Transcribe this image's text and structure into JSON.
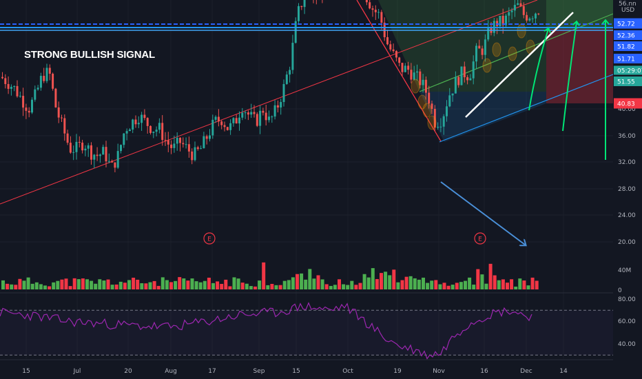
{
  "annotation": {
    "text": "STRONG BULLISH SIGNAL"
  },
  "colors": {
    "background": "#131722",
    "up": "#26a69a",
    "down": "#ef5350",
    "volume_up": "#4caf50",
    "volume_down": "#f23645",
    "rsi_line": "#9c27b0",
    "resistance": "#2962ff",
    "trend_red": "#f23645",
    "channel_green": "#4caf50",
    "channel_blue": "#2196f3",
    "arrow_green": "#00e676",
    "white": "#ffffff"
  },
  "axis": {
    "currency": "USD",
    "top_partial": "56.nn",
    "price_ticks": [
      "40.00",
      "36.00",
      "32.00",
      "28.00",
      "24.00",
      "20.00"
    ],
    "volume_ticks": [
      "40M",
      "0"
    ],
    "rsi_ticks": [
      "80.00",
      "60.00",
      "40.00"
    ],
    "time_labels": [
      "15",
      "Jul",
      "20",
      "Aug",
      "17",
      "Sep",
      "15",
      "Oct",
      "19",
      "Nov",
      "16",
      "Dec",
      "14"
    ]
  },
  "price_tags": [
    {
      "label": "52.72",
      "kind": "blue"
    },
    {
      "label": "52.36",
      "kind": "blue"
    },
    {
      "label": "51.82",
      "kind": "blue"
    },
    {
      "label": "51.71",
      "kind": "blue"
    },
    {
      "label": "05:29:07",
      "kind": "green"
    },
    {
      "label": "51.55",
      "kind": "green"
    },
    {
      "label": "40.83",
      "kind": "red"
    }
  ],
  "earnings_marker": "E",
  "chart_data": {
    "type": "candlestick",
    "price_axis": {
      "ticks": [
        20,
        24,
        28,
        32,
        36,
        40
      ]
    },
    "rsi_axis": {
      "ticks": [
        40,
        60,
        80
      ],
      "bands": [
        70,
        30
      ]
    },
    "key_levels": [
      52.72,
      52.36
    ],
    "series": [
      {
        "name": "price",
        "points": [
          [
            0,
            44.8
          ],
          [
            10,
            44
          ],
          [
            20,
            43
          ],
          [
            30,
            41.5
          ],
          [
            40,
            40
          ],
          [
            50,
            42
          ],
          [
            60,
            45
          ],
          [
            70,
            45.5
          ],
          [
            80,
            40
          ],
          [
            90,
            37
          ],
          [
            100,
            34
          ],
          [
            110,
            34
          ],
          [
            120,
            35
          ],
          [
            130,
            33.5
          ],
          [
            140,
            33
          ],
          [
            150,
            33.5
          ],
          [
            160,
            31
          ],
          [
            170,
            33
          ],
          [
            180,
            37
          ],
          [
            190,
            38
          ],
          [
            200,
            39
          ],
          [
            210,
            38
          ],
          [
            220,
            37
          ],
          [
            230,
            37
          ],
          [
            240,
            35
          ],
          [
            250,
            34
          ],
          [
            260,
            35
          ],
          [
            270,
            34
          ],
          [
            280,
            33
          ],
          [
            290,
            34
          ],
          [
            300,
            36
          ],
          [
            310,
            38
          ],
          [
            320,
            38.5
          ],
          [
            330,
            37
          ],
          [
            340,
            38
          ],
          [
            350,
            40.5
          ],
          [
            360,
            39
          ],
          [
            370,
            38
          ],
          [
            380,
            40
          ],
          [
            390,
            38
          ],
          [
            400,
            40
          ],
          [
            410,
            43
          ],
          [
            420,
            47
          ],
          [
            430,
            54
          ],
          [
            440,
            57
          ],
          [
            450,
            57.5
          ],
          [
            460,
            56
          ],
          [
            470,
            58.5
          ],
          [
            480,
            59
          ],
          [
            490,
            60
          ],
          [
            500,
            61
          ],
          [
            510,
            62
          ],
          [
            520,
            61
          ],
          [
            530,
            57
          ],
          [
            540,
            55
          ],
          [
            550,
            54
          ],
          [
            560,
            50
          ],
          [
            570,
            48
          ],
          [
            580,
            46
          ],
          [
            590,
            46
          ],
          [
            600,
            45
          ],
          [
            610,
            44
          ],
          [
            620,
            42
          ],
          [
            630,
            38
          ],
          [
            640,
            38.5
          ],
          [
            650,
            42
          ],
          [
            660,
            44
          ],
          [
            670,
            45.5
          ],
          [
            680,
            45
          ],
          [
            690,
            48.5
          ],
          [
            700,
            49
          ],
          [
            710,
            52
          ],
          [
            720,
            53
          ],
          [
            730,
            53
          ],
          [
            740,
            54.5
          ],
          [
            750,
            55.5
          ],
          [
            760,
            54
          ],
          [
            770,
            54.2
          ],
          [
            780,
            55
          ]
        ]
      },
      {
        "name": "RSI",
        "points": [
          [
            0,
            68
          ],
          [
            50,
            65
          ],
          [
            100,
            60
          ],
          [
            150,
            58
          ],
          [
            200,
            56
          ],
          [
            250,
            55
          ],
          [
            300,
            60
          ],
          [
            350,
            66
          ],
          [
            400,
            68
          ],
          [
            430,
            72
          ],
          [
            440,
            74
          ],
          [
            460,
            72
          ],
          [
            480,
            70
          ],
          [
            500,
            74
          ],
          [
            520,
            65
          ],
          [
            540,
            55
          ],
          [
            560,
            45
          ],
          [
            580,
            38
          ],
          [
            600,
            35
          ],
          [
            620,
            30
          ],
          [
            640,
            32
          ],
          [
            660,
            48
          ],
          [
            680,
            58
          ],
          [
            700,
            64
          ],
          [
            720,
            68
          ],
          [
            740,
            70
          ],
          [
            760,
            66
          ],
          [
            775,
            64
          ]
        ]
      }
    ]
  }
}
